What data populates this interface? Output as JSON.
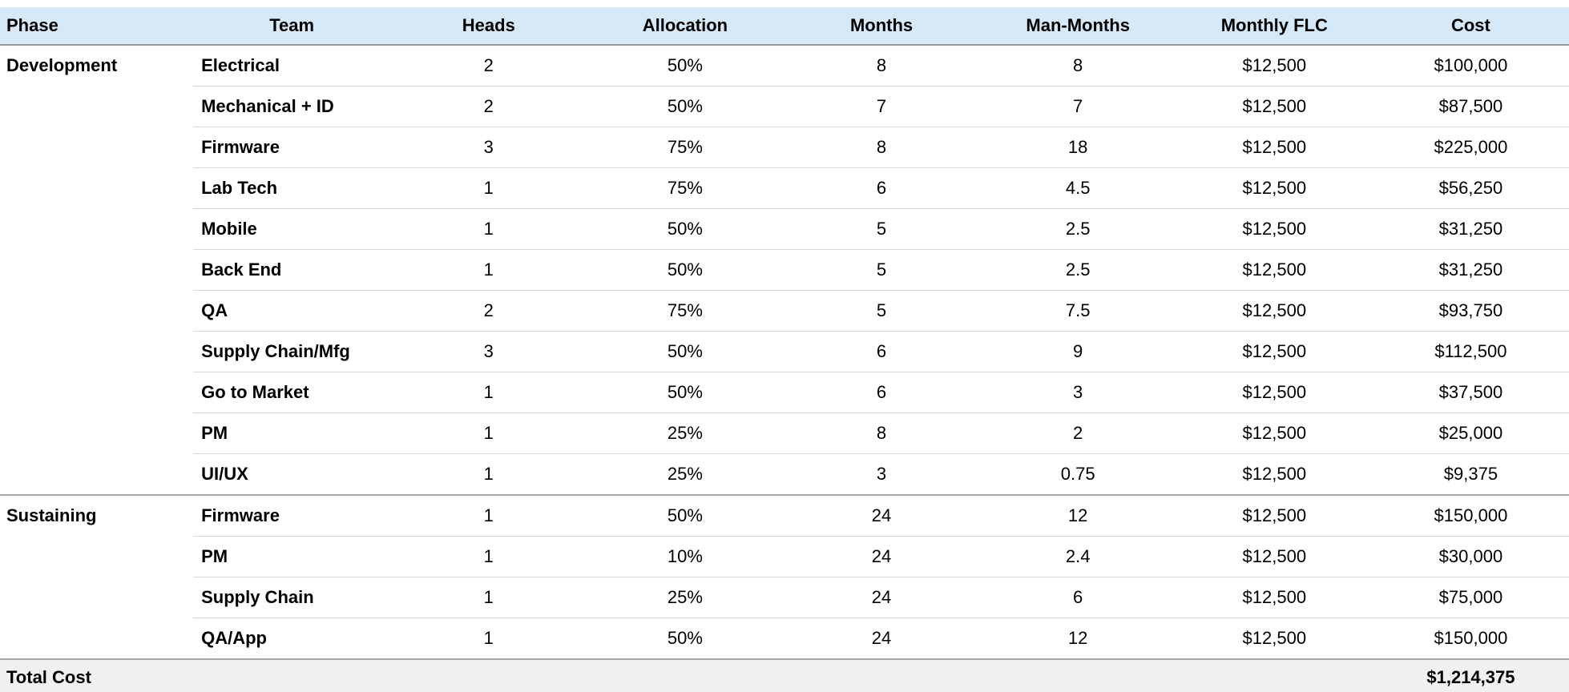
{
  "colors": {
    "header_bg": "#d5e9f8",
    "header_border": "#9a9a9a",
    "divider": "#d9d9d9",
    "phase_divider": "#a8a8a8",
    "total_bg": "#f0f0f0"
  },
  "table": {
    "columns": [
      {
        "key": "phase",
        "label": "Phase"
      },
      {
        "key": "team",
        "label": "Team"
      },
      {
        "key": "heads",
        "label": "Heads"
      },
      {
        "key": "allocation",
        "label": "Allocation"
      },
      {
        "key": "months",
        "label": "Months"
      },
      {
        "key": "man_months",
        "label": "Man-Months"
      },
      {
        "key": "monthly_flc",
        "label": "Monthly FLC"
      },
      {
        "key": "cost",
        "label": "Cost"
      }
    ],
    "rows": [
      {
        "phase": "Development",
        "team": "Electrical",
        "heads": "2",
        "allocation": "50%",
        "months": "8",
        "man_months": "8",
        "monthly_flc": "$12,500",
        "cost": "$100,000",
        "phase_start": true
      },
      {
        "phase": "",
        "team": "Mechanical + ID",
        "heads": "2",
        "allocation": "50%",
        "months": "7",
        "man_months": "7",
        "monthly_flc": "$12,500",
        "cost": "$87,500",
        "phase_start": false
      },
      {
        "phase": "",
        "team": "Firmware",
        "heads": "3",
        "allocation": "75%",
        "months": "8",
        "man_months": "18",
        "monthly_flc": "$12,500",
        "cost": "$225,000",
        "phase_start": false
      },
      {
        "phase": "",
        "team": "Lab Tech",
        "heads": "1",
        "allocation": "75%",
        "months": "6",
        "man_months": "4.5",
        "monthly_flc": "$12,500",
        "cost": "$56,250",
        "phase_start": false
      },
      {
        "phase": "",
        "team": "Mobile",
        "heads": "1",
        "allocation": "50%",
        "months": "5",
        "man_months": "2.5",
        "monthly_flc": "$12,500",
        "cost": "$31,250",
        "phase_start": false
      },
      {
        "phase": "",
        "team": "Back End",
        "heads": "1",
        "allocation": "50%",
        "months": "5",
        "man_months": "2.5",
        "monthly_flc": "$12,500",
        "cost": "$31,250",
        "phase_start": false
      },
      {
        "phase": "",
        "team": "QA",
        "heads": "2",
        "allocation": "75%",
        "months": "5",
        "man_months": "7.5",
        "monthly_flc": "$12,500",
        "cost": "$93,750",
        "phase_start": false
      },
      {
        "phase": "",
        "team": "Supply Chain/Mfg",
        "heads": "3",
        "allocation": "50%",
        "months": "6",
        "man_months": "9",
        "monthly_flc": "$12,500",
        "cost": "$112,500",
        "phase_start": false
      },
      {
        "phase": "",
        "team": "Go to Market",
        "heads": "1",
        "allocation": "50%",
        "months": "6",
        "man_months": "3",
        "monthly_flc": "$12,500",
        "cost": "$37,500",
        "phase_start": false
      },
      {
        "phase": "",
        "team": "PM",
        "heads": "1",
        "allocation": "25%",
        "months": "8",
        "man_months": "2",
        "monthly_flc": "$12,500",
        "cost": "$25,000",
        "phase_start": false
      },
      {
        "phase": "",
        "team": "UI/UX",
        "heads": "1",
        "allocation": "25%",
        "months": "3",
        "man_months": "0.75",
        "monthly_flc": "$12,500",
        "cost": "$9,375",
        "phase_start": false
      },
      {
        "phase": "Sustaining",
        "team": "Firmware",
        "heads": "1",
        "allocation": "50%",
        "months": "24",
        "man_months": "12",
        "monthly_flc": "$12,500",
        "cost": "$150,000",
        "phase_start": true
      },
      {
        "phase": "",
        "team": "PM",
        "heads": "1",
        "allocation": "10%",
        "months": "24",
        "man_months": "2.4",
        "monthly_flc": "$12,500",
        "cost": "$30,000",
        "phase_start": false
      },
      {
        "phase": "",
        "team": "Supply Chain",
        "heads": "1",
        "allocation": "25%",
        "months": "24",
        "man_months": "6",
        "monthly_flc": "$12,500",
        "cost": "$75,000",
        "phase_start": false
      },
      {
        "phase": "",
        "team": "QA/App",
        "heads": "1",
        "allocation": "50%",
        "months": "24",
        "man_months": "12",
        "monthly_flc": "$12,500",
        "cost": "$150,000",
        "phase_start": false
      }
    ],
    "total": {
      "label": "Total Cost",
      "value": "$1,214,375"
    }
  }
}
